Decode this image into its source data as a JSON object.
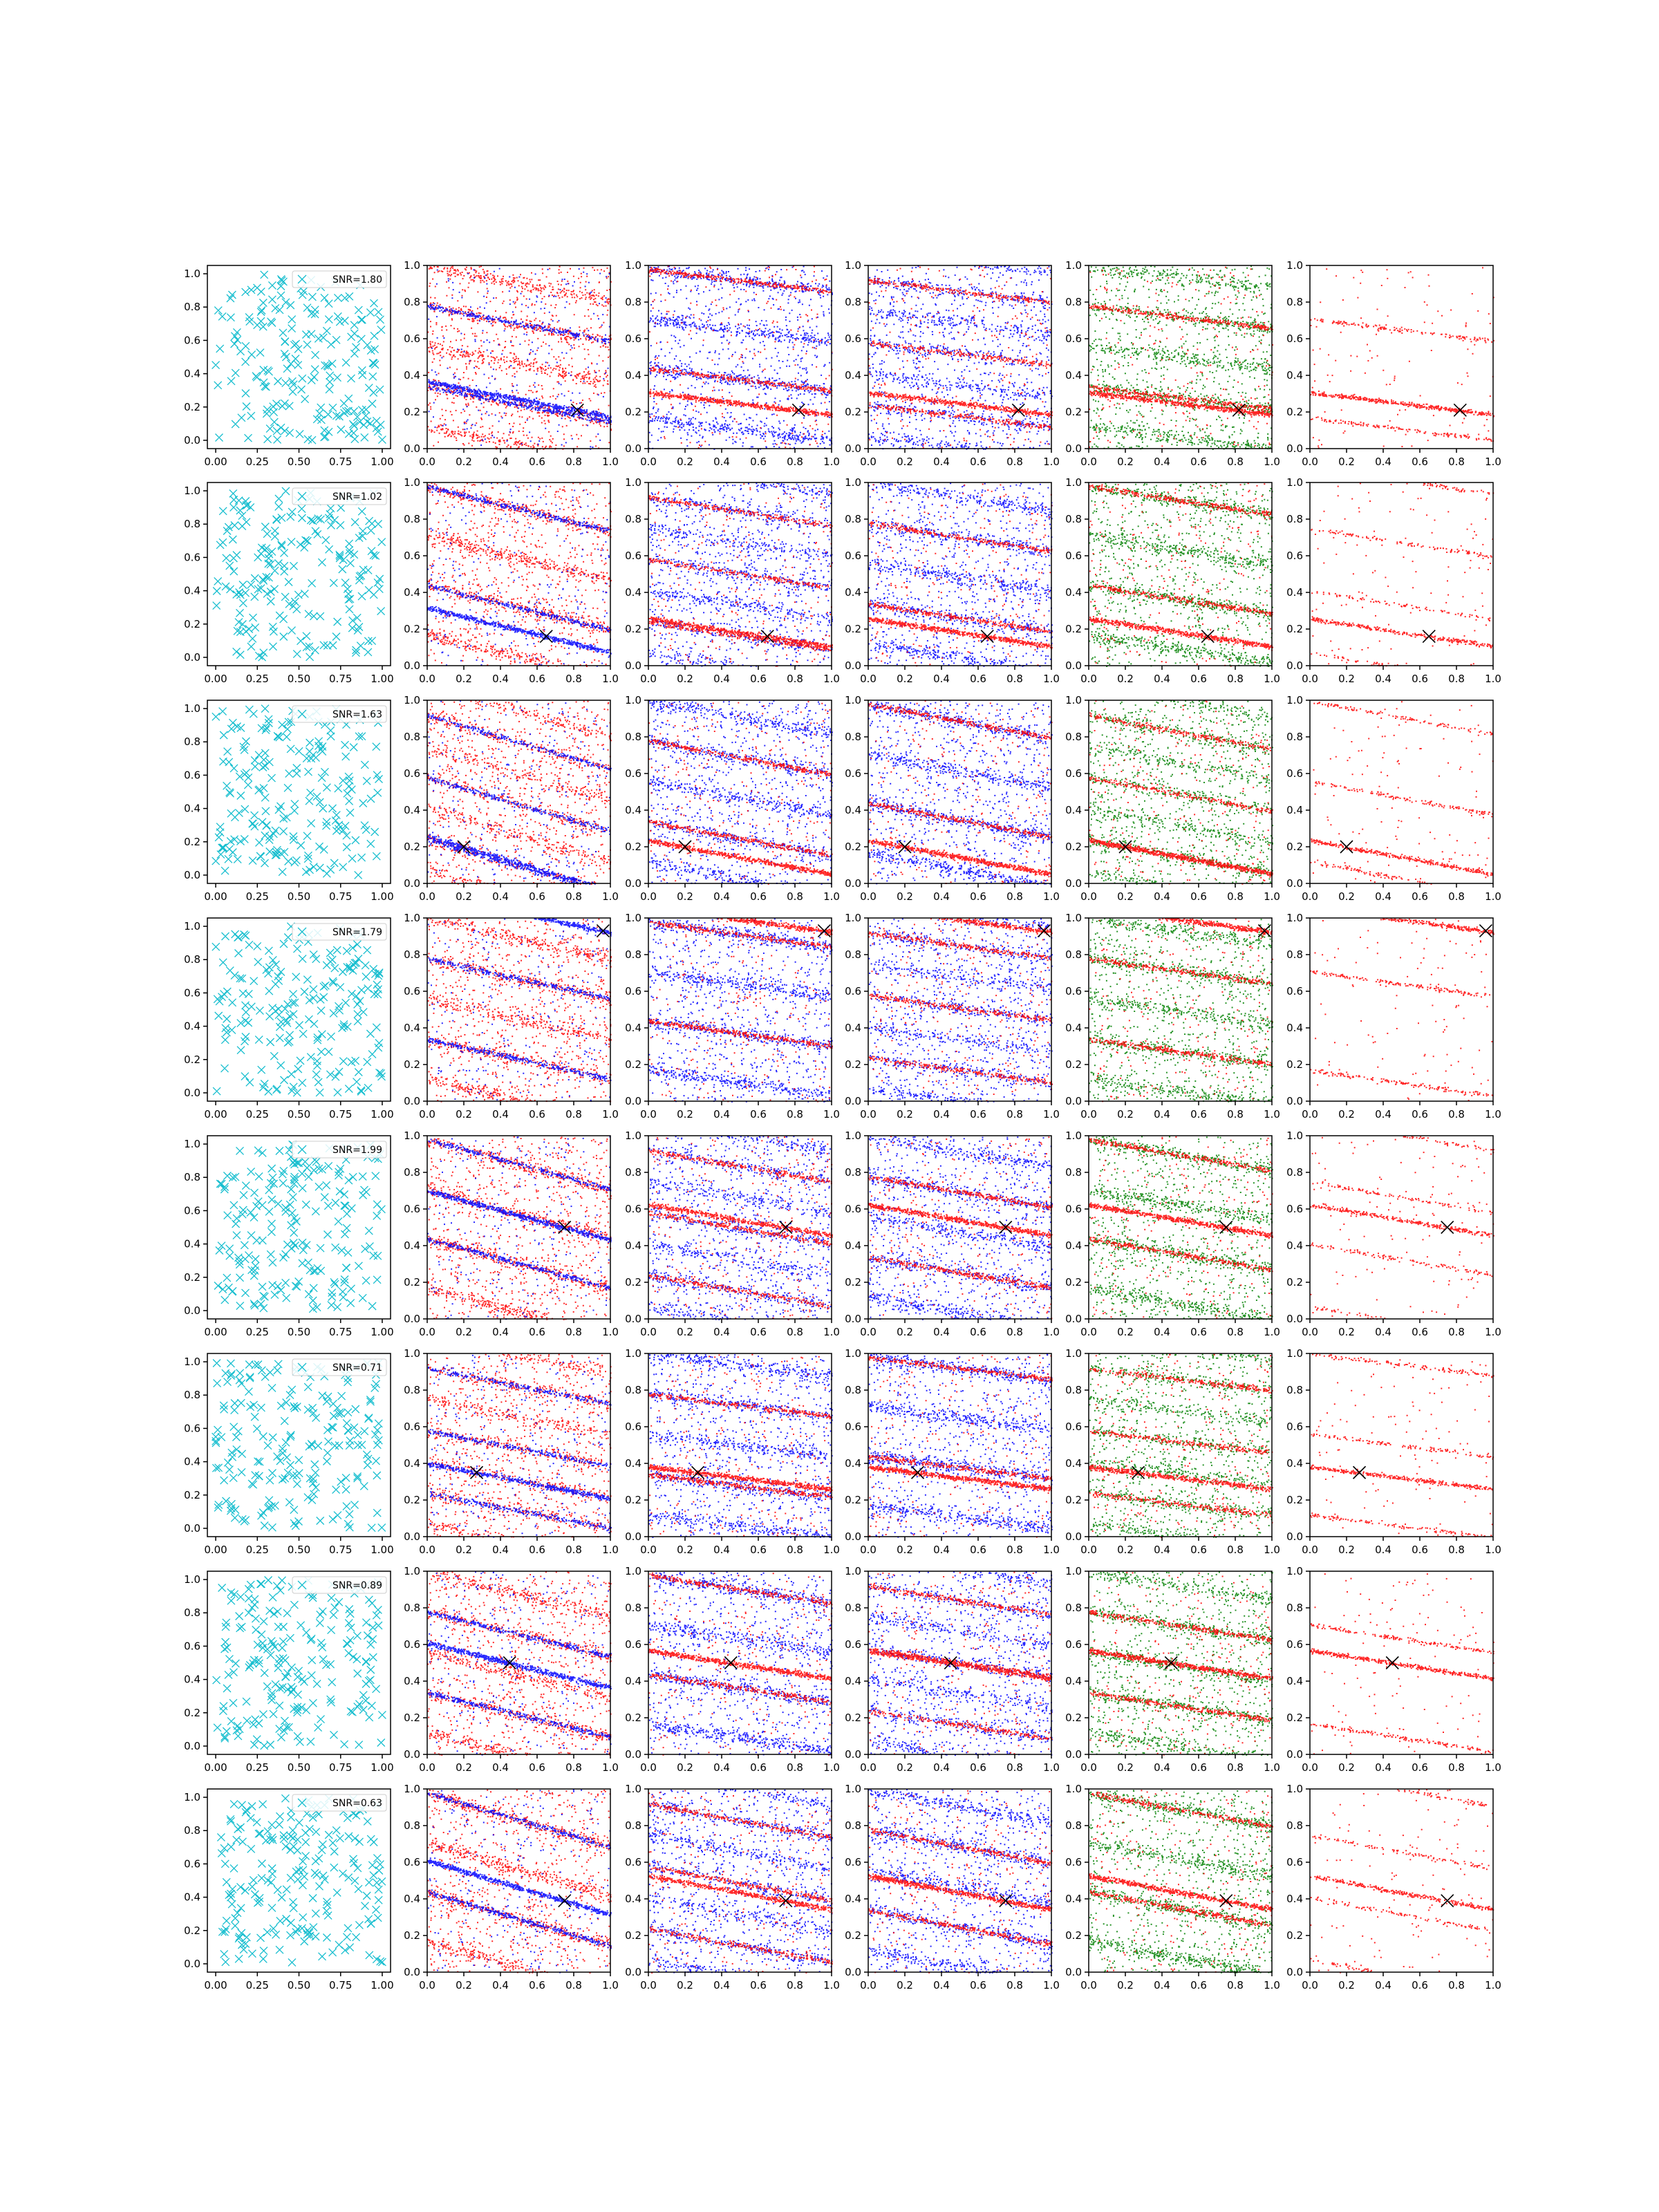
{
  "figure": {
    "layout": {
      "rows": 8,
      "cols": 6
    },
    "colors": {
      "cyan_cross": "#17becf",
      "red": "#ff0000",
      "blue": "#0000ff",
      "green": "#008000",
      "target_marker": "#000000",
      "axes": "#000000"
    }
  },
  "chart_data": {
    "type": "scatter",
    "axis": {
      "xlim": [
        0.0,
        1.0
      ],
      "ylim": [
        0.0,
        1.0
      ],
      "first_col_xticks": [
        "0.00",
        "0.25",
        "0.50",
        "0.75",
        "1.00"
      ],
      "first_col_yticks": [
        "0.0",
        "0.2",
        "0.4",
        "0.6",
        "0.8",
        "1.0"
      ],
      "other_xticks": [
        "0.0",
        "0.2",
        "0.4",
        "0.6",
        "0.8",
        "1.0"
      ],
      "other_yticks": [
        "0.0",
        "0.2",
        "0.4",
        "0.6",
        "0.8",
        "1.0"
      ]
    },
    "column_styles": [
      {
        "kind": "cross_scatter",
        "colors": [
          "cyan_cross"
        ]
      },
      {
        "kind": "dense_points",
        "colors": [
          "red",
          "blue"
        ]
      },
      {
        "kind": "dense_points",
        "colors": [
          "blue",
          "red"
        ]
      },
      {
        "kind": "dense_points",
        "colors": [
          "blue",
          "red"
        ]
      },
      {
        "kind": "dense_points",
        "colors": [
          "green",
          "red"
        ]
      },
      {
        "kind": "sparse_points",
        "colors": [
          "red"
        ]
      }
    ],
    "rows": [
      {
        "snr_label": "SNR=1.80",
        "target": [
          0.82,
          0.21
        ]
      },
      {
        "snr_label": "SNR=1.02",
        "target": [
          0.65,
          0.16
        ]
      },
      {
        "snr_label": "SNR=1.63",
        "target": [
          0.2,
          0.2
        ]
      },
      {
        "snr_label": "SNR=1.79",
        "target": [
          0.96,
          0.93
        ]
      },
      {
        "snr_label": "SNR=1.99",
        "target": [
          0.75,
          0.5
        ]
      },
      {
        "snr_label": "SNR=0.71",
        "target": [
          0.27,
          0.35
        ]
      },
      {
        "snr_label": "SNR=0.89",
        "target": [
          0.45,
          0.5
        ]
      },
      {
        "snr_label": "SNR=0.63",
        "target": [
          0.75,
          0.39
        ]
      }
    ]
  }
}
